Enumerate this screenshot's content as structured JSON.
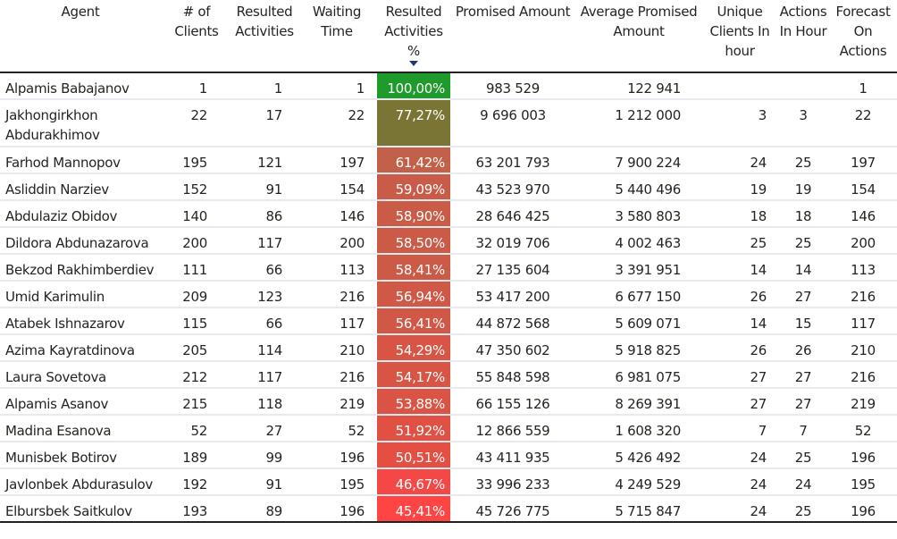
{
  "headers": {
    "agent": "Agent",
    "clients": "# of Clients",
    "resulted": "Resulted Activities",
    "waiting": "Waiting Time",
    "resulted_pct": "Resulted Activities %",
    "promised": "Promised Amount",
    "avg_promised": "Average Promised Amount",
    "unique_clients": "Unique Clients In hour",
    "actions_hour": "Actions In Hour",
    "forecast": "Forecast On Actions"
  },
  "sort": {
    "column": "resulted_pct",
    "direction": "descending",
    "icon": "sort-descending-icon"
  },
  "rows": [
    {
      "agent": "Alpamis Babajanov",
      "clients": "1",
      "resulted": "1",
      "waiting": "1",
      "pct": "100,00%",
      "color": "#1e9b2a",
      "promised": "983 529",
      "avg": "122 941",
      "unique": "",
      "actions": "",
      "forecast": "1"
    },
    {
      "agent": "Jakhongirkhon Abdurakhimov",
      "clients": "22",
      "resulted": "17",
      "waiting": "22",
      "pct": "77,27%",
      "color": "#7b7535",
      "promised": "9 696 003",
      "avg": "1 212 000",
      "unique": "3",
      "actions": "3",
      "forecast": "22"
    },
    {
      "agent": "Farhod Mannopov",
      "clients": "195",
      "resulted": "121",
      "waiting": "197",
      "pct": "61,42%",
      "color": "#c2604a",
      "promised": "63 201 793",
      "avg": "7 900 224",
      "unique": "24",
      "actions": "25",
      "forecast": "197"
    },
    {
      "agent": "Asliddin Narziev",
      "clients": "152",
      "resulted": "91",
      "waiting": "154",
      "pct": "59,09%",
      "color": "#c95c48",
      "promised": "43 523 970",
      "avg": "5 440 496",
      "unique": "19",
      "actions": "19",
      "forecast": "154"
    },
    {
      "agent": "Abdulaziz Obidov",
      "clients": "140",
      "resulted": "86",
      "waiting": "146",
      "pct": "58,90%",
      "color": "#ca5c47",
      "promised": "28 646 425",
      "avg": "3 580 803",
      "unique": "18",
      "actions": "18",
      "forecast": "146"
    },
    {
      "agent": "Dildora Abdunazarova",
      "clients": "200",
      "resulted": "117",
      "waiting": "200",
      "pct": "58,50%",
      "color": "#cb5b47",
      "promised": "32 019 706",
      "avg": "4 002 463",
      "unique": "25",
      "actions": "25",
      "forecast": "200"
    },
    {
      "agent": "Bekzod Rakhimberdiev",
      "clients": "111",
      "resulted": "66",
      "waiting": "113",
      "pct": "58,41%",
      "color": "#cb5b47",
      "promised": "27 135 604",
      "avg": "3 391 951",
      "unique": "14",
      "actions": "14",
      "forecast": "113"
    },
    {
      "agent": "Umid Karimulin",
      "clients": "209",
      "resulted": "123",
      "waiting": "216",
      "pct": "56,94%",
      "color": "#d05846",
      "promised": "53 417 200",
      "avg": "6 677 150",
      "unique": "26",
      "actions": "27",
      "forecast": "216"
    },
    {
      "agent": "Atabek Ishnazarov",
      "clients": "115",
      "resulted": "66",
      "waiting": "117",
      "pct": "56,41%",
      "color": "#d15746",
      "promised": "44 872 568",
      "avg": "5 609 071",
      "unique": "14",
      "actions": "15",
      "forecast": "117"
    },
    {
      "agent": "Azima Kayratdinova",
      "clients": "205",
      "resulted": "114",
      "waiting": "210",
      "pct": "54,29%",
      "color": "#d85445",
      "promised": "47 350 602",
      "avg": "5 918 825",
      "unique": "26",
      "actions": "26",
      "forecast": "210"
    },
    {
      "agent": "Laura Sovetova",
      "clients": "212",
      "resulted": "117",
      "waiting": "216",
      "pct": "54,17%",
      "color": "#d85445",
      "promised": "55 848 598",
      "avg": "6 981 075",
      "unique": "27",
      "actions": "27",
      "forecast": "216"
    },
    {
      "agent": "Alpamis Asanov",
      "clients": "215",
      "resulted": "118",
      "waiting": "219",
      "pct": "53,88%",
      "color": "#d95445",
      "promised": "66 155 126",
      "avg": "8 269 391",
      "unique": "27",
      "actions": "27",
      "forecast": "219"
    },
    {
      "agent": "Madina Esanova",
      "clients": "52",
      "resulted": "27",
      "waiting": "52",
      "pct": "51,92%",
      "color": "#e05043",
      "promised": "12 866 559",
      "avg": "1 608 320",
      "unique": "7",
      "actions": "7",
      "forecast": "52"
    },
    {
      "agent": "Munisbek Botirov",
      "clients": "189",
      "resulted": "99",
      "waiting": "196",
      "pct": "50,51%",
      "color": "#e54e43",
      "promised": "43 411 935",
      "avg": "5 426 492",
      "unique": "24",
      "actions": "25",
      "forecast": "196"
    },
    {
      "agent": "Javlonbek Abdurasulov",
      "clients": "192",
      "resulted": "91",
      "waiting": "195",
      "pct": "46,67%",
      "color": "#f44846",
      "promised": "33 996 233",
      "avg": "4 249 529",
      "unique": "24",
      "actions": "24",
      "forecast": "195"
    },
    {
      "agent": "Elbursbek Saitkulov",
      "clients": "193",
      "resulted": "89",
      "waiting": "196",
      "pct": "45,41%",
      "color": "#ff4444",
      "promised": "45 726 775",
      "avg": "5 715 847",
      "unique": "24",
      "actions": "25",
      "forecast": "196"
    }
  ]
}
